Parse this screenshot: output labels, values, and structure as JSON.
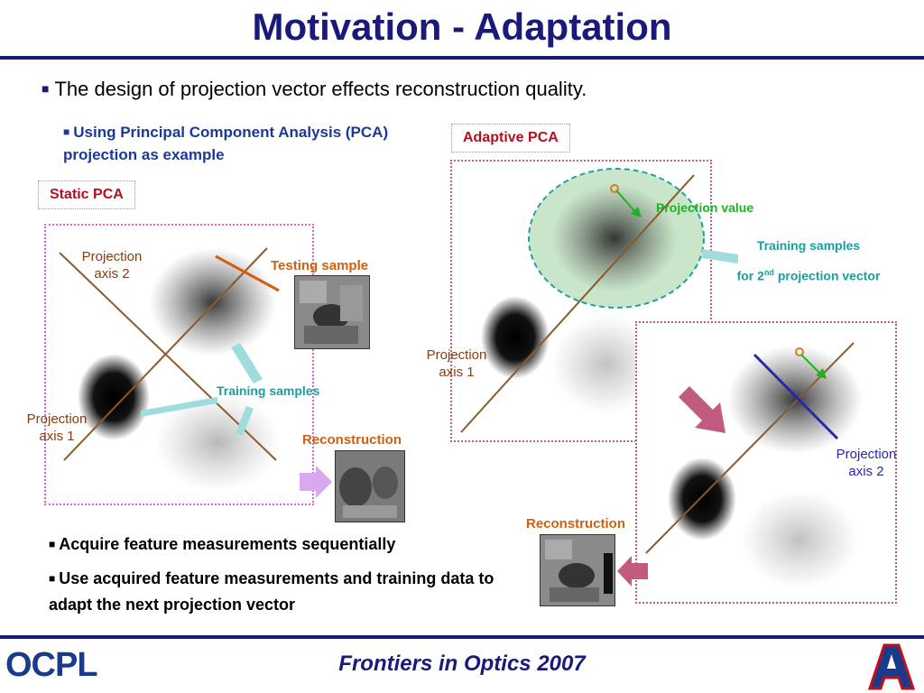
{
  "title": "Motivation - Adaptation",
  "bullet_main": "The design of projection vector effects reconstruction quality.",
  "bullet_sub": "Using Principal Component Analysis (PCA) projection as example",
  "static": {
    "box_label": "Static PCA",
    "projection_axis_2": [
      "Projection",
      "axis 2"
    ],
    "projection_axis_1": [
      "Projection",
      "axis 1"
    ],
    "testing_sample": "Testing sample",
    "training_samples": "Training samples",
    "reconstruction": "Reconstruction"
  },
  "adaptive": {
    "box_label": "Adaptive PCA",
    "projection_value": "Projection value",
    "training_samples_line1": "Training samples",
    "training_samples_line2_pre": "for 2",
    "training_samples_sup": "nd",
    "training_samples_line2_post": " projection vector",
    "projection_axis_1": [
      "Projection",
      "axis 1"
    ],
    "projection_axis_2": [
      "Projection",
      "axis 2"
    ],
    "reconstruction": "Reconstruction"
  },
  "bottom_bullets": [
    "Acquire feature measurements sequentially",
    "Use acquired feature measurements and training data to adapt the next projection vector"
  ],
  "footer": "Frontiers in Optics 2007",
  "logo_text": "OCPL",
  "colors": {
    "title": "#1a1a7a",
    "accent_red": "#b01020",
    "teal": "#17a0a0",
    "orange": "#d06010",
    "green": "#20b020",
    "blue": "#2828a8"
  }
}
